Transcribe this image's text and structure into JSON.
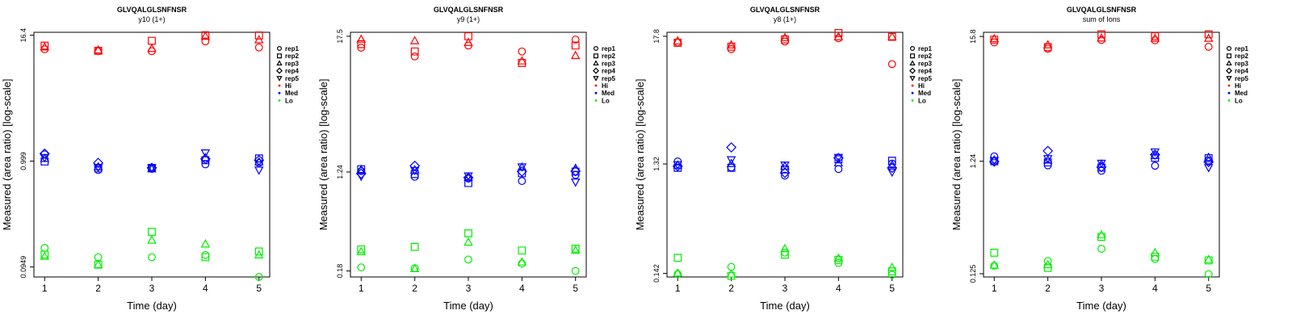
{
  "chart_data": [
    {
      "type": "scatter",
      "title": "GLVQALGLSNFNSR",
      "subtitle": "y10 (1+)",
      "xlabel": "Time (day)",
      "ylabel": "Measured (area ratio) [log-scale]",
      "y_scale": "log",
      "xlim": [
        0.8,
        5.2
      ],
      "ylim": [
        0.076,
        17.5
      ],
      "x_ticks": [
        1,
        2,
        3,
        4,
        5
      ],
      "y_ticks": [
        {
          "value": 0.0949,
          "label": "0.0949"
        },
        {
          "value": 0.999,
          "label": "0.999"
        },
        {
          "value": 16.4,
          "label": "16.4"
        }
      ],
      "colors": {
        "Hi": "#ff0000",
        "Med": "#0000ff",
        "Lo": "#00ee00"
      },
      "series": [
        {
          "level": "Hi",
          "rep": "rep1",
          "values": [
            12.0,
            11.5,
            11.5,
            14.3,
            12.5
          ]
        },
        {
          "level": "Hi",
          "rep": "rep2",
          "values": [
            13.0,
            11.6,
            14.5,
            16.4,
            16.3
          ]
        },
        {
          "level": "Hi",
          "rep": "rep3",
          "values": [
            12.6,
            11.8,
            12.2,
            16.0,
            14.8
          ]
        },
        {
          "level": "Med",
          "rep": "rep1",
          "values": [
            1.16,
            0.82,
            0.84,
            0.93,
            0.96
          ]
        },
        {
          "level": "Med",
          "rep": "rep2",
          "values": [
            0.99,
            0.85,
            0.86,
            1.02,
            1.06
          ]
        },
        {
          "level": "Med",
          "rep": "rep3",
          "values": [
            1.06,
            0.88,
            0.84,
            1.08,
            0.98
          ]
        },
        {
          "level": "Med",
          "rep": "rep4",
          "values": [
            1.18,
            0.96,
            0.86,
            1.05,
            1.02
          ]
        },
        {
          "level": "Med",
          "rep": "rep5",
          "values": [
            1.08,
            0.87,
            0.86,
            1.2,
            0.82
          ]
        },
        {
          "level": "Lo",
          "rep": "rep1",
          "values": [
            0.145,
            0.118,
            0.118,
            0.124,
            0.076
          ]
        },
        {
          "level": "Lo",
          "rep": "rep2",
          "values": [
            0.125,
            0.1,
            0.207,
            0.118,
            0.134
          ]
        },
        {
          "level": "Lo",
          "rep": "rep3",
          "values": [
            0.12,
            0.1,
            0.172,
            0.158,
            0.124
          ]
        }
      ]
    },
    {
      "type": "scatter",
      "title": "GLVQALGLSNFNSR",
      "subtitle": "y9 (1+)",
      "xlabel": "Time (day)",
      "ylabel": "Measured (area ratio) [log-scale]",
      "y_scale": "log",
      "xlim": [
        0.8,
        5.2
      ],
      "ylim": [
        0.16,
        18.9
      ],
      "x_ticks": [
        1,
        2,
        3,
        4,
        5
      ],
      "y_ticks": [
        {
          "value": 0.18,
          "label": "0.18"
        },
        {
          "value": 1.24,
          "label": "1.24"
        },
        {
          "value": 17.5,
          "label": "17.5"
        }
      ],
      "colors": {
        "Hi": "#ff0000",
        "Med": "#0000ff",
        "Lo": "#00ee00"
      },
      "series": [
        {
          "level": "Hi",
          "rep": "rep1",
          "values": [
            14.0,
            11.8,
            14.6,
            13.0,
            16.4
          ]
        },
        {
          "level": "Hi",
          "rep": "rep2",
          "values": [
            15.0,
            13.0,
            17.5,
            10.4,
            14.6
          ]
        },
        {
          "level": "Hi",
          "rep": "rep3",
          "values": [
            16.5,
            16.0,
            15.5,
            10.8,
            12.0
          ]
        },
        {
          "level": "Med",
          "rep": "rep1",
          "values": [
            1.26,
            1.13,
            1.09,
            1.04,
            1.17
          ]
        },
        {
          "level": "Med",
          "rep": "rep2",
          "values": [
            1.31,
            1.19,
            1.0,
            1.21,
            1.25
          ]
        },
        {
          "level": "Med",
          "rep": "rep3",
          "values": [
            1.3,
            1.29,
            1.12,
            1.36,
            1.33
          ]
        },
        {
          "level": "Med",
          "rep": "rep4",
          "values": [
            1.2,
            1.4,
            1.11,
            1.25,
            1.26
          ]
        },
        {
          "level": "Med",
          "rep": "rep5",
          "values": [
            1.14,
            1.28,
            1.15,
            1.37,
            1.02
          ]
        },
        {
          "level": "Lo",
          "rep": "rep1",
          "values": [
            0.193,
            0.19,
            0.225,
            0.208,
            0.18
          ]
        },
        {
          "level": "Lo",
          "rep": "rep2",
          "values": [
            0.274,
            0.288,
            0.375,
            0.268,
            0.278
          ]
        },
        {
          "level": "Lo",
          "rep": "rep3",
          "values": [
            0.262,
            0.188,
            0.315,
            0.214,
            0.269
          ]
        }
      ]
    },
    {
      "type": "scatter",
      "title": "GLVQALGLSNFNSR",
      "subtitle": "y8 (1+)",
      "xlabel": "Time (day)",
      "ylabel": "Measured (area ratio) [log-scale]",
      "y_scale": "log",
      "xlim": [
        0.8,
        5.2
      ],
      "ylim": [
        0.132,
        19.3
      ],
      "x_ticks": [
        1,
        2,
        3,
        4,
        5
      ],
      "y_ticks": [
        {
          "value": 0.142,
          "label": "0.142"
        },
        {
          "value": 1.32,
          "label": "1.32"
        },
        {
          "value": 17.8,
          "label": "17.8"
        }
      ],
      "colors": {
        "Hi": "#ff0000",
        "Med": "#0000ff",
        "Lo": "#00ee00"
      },
      "series": [
        {
          "level": "Hi",
          "rep": "rep1",
          "values": [
            15.7,
            13.7,
            16.0,
            17.1,
            10.1
          ]
        },
        {
          "level": "Hi",
          "rep": "rep2",
          "values": [
            15.6,
            14.4,
            16.7,
            19.0,
            17.6
          ]
        },
        {
          "level": "Hi",
          "rep": "rep3",
          "values": [
            16.2,
            14.9,
            17.3,
            17.6,
            17.6
          ]
        },
        {
          "level": "Med",
          "rep": "rep1",
          "values": [
            1.39,
            1.23,
            1.04,
            1.19,
            1.33
          ]
        },
        {
          "level": "Med",
          "rep": "rep2",
          "values": [
            1.22,
            1.22,
            1.18,
            1.45,
            1.41
          ]
        },
        {
          "level": "Med",
          "rep": "rep3",
          "values": [
            1.29,
            1.33,
            1.26,
            1.35,
            1.3
          ]
        },
        {
          "level": "Med",
          "rep": "rep4",
          "values": [
            1.26,
            1.85,
            1.1,
            1.49,
            1.22
          ]
        },
        {
          "level": "Med",
          "rep": "rep5",
          "values": [
            1.3,
            1.44,
            1.29,
            1.51,
            1.12
          ]
        },
        {
          "level": "Lo",
          "rep": "rep1",
          "values": [
            0.14,
            0.162,
            0.217,
            0.176,
            0.138
          ]
        },
        {
          "level": "Lo",
          "rep": "rep2",
          "values": [
            0.195,
            0.135,
            0.208,
            0.187,
            0.148
          ]
        },
        {
          "level": "Lo",
          "rep": "rep3",
          "values": [
            0.143,
            0.14,
            0.235,
            0.193,
            0.16
          ]
        }
      ]
    },
    {
      "type": "scatter",
      "title": "GLVQALGLSNFNSR",
      "subtitle": "sum of Ions",
      "xlabel": "Time (day)",
      "ylabel": "Measured (area ratio) [log-scale]",
      "y_scale": "log",
      "xlim": [
        0.8,
        5.2
      ],
      "ylim": [
        0.117,
        17.2
      ],
      "x_ticks": [
        1,
        2,
        3,
        4,
        5
      ],
      "y_ticks": [
        {
          "value": 0.125,
          "label": "0.125"
        },
        {
          "value": 1.24,
          "label": "1.24"
        },
        {
          "value": 15.8,
          "label": "15.8"
        }
      ],
      "colors": {
        "Hi": "#ff0000",
        "Med": "#0000ff",
        "Lo": "#00ee00"
      },
      "series": [
        {
          "level": "Hi",
          "rep": "rep1",
          "values": [
            14.0,
            12.3,
            14.7,
            14.6,
            12.8
          ]
        },
        {
          "level": "Hi",
          "rep": "rep2",
          "values": [
            14.8,
            12.7,
            16.5,
            15.9,
            16.5
          ]
        },
        {
          "level": "Hi",
          "rep": "rep3",
          "values": [
            15.1,
            13.3,
            15.3,
            15.2,
            15.2
          ]
        },
        {
          "level": "Med",
          "rep": "rep1",
          "values": [
            1.37,
            1.14,
            1.02,
            1.13,
            1.26
          ]
        },
        {
          "level": "Med",
          "rep": "rep2",
          "values": [
            1.24,
            1.21,
            1.09,
            1.33,
            1.32
          ]
        },
        {
          "level": "Med",
          "rep": "rep3",
          "values": [
            1.27,
            1.27,
            1.17,
            1.39,
            1.34
          ]
        },
        {
          "level": "Med",
          "rep": "rep4",
          "values": [
            1.23,
            1.53,
            1.1,
            1.42,
            1.22
          ]
        },
        {
          "level": "Med",
          "rep": "rep5",
          "values": [
            1.26,
            1.31,
            1.19,
            1.5,
            1.09
          ]
        },
        {
          "level": "Lo",
          "rep": "rep1",
          "values": [
            0.147,
            0.162,
            0.208,
            0.169,
            0.124
          ]
        },
        {
          "level": "Lo",
          "rep": "rep2",
          "values": [
            0.192,
            0.141,
            0.265,
            0.177,
            0.164
          ]
        },
        {
          "level": "Lo",
          "rep": "rep3",
          "values": [
            0.149,
            0.15,
            0.276,
            0.192,
            0.167
          ]
        }
      ]
    }
  ],
  "legend": {
    "reps": [
      {
        "label": "rep1",
        "symbol": "circle"
      },
      {
        "label": "rep2",
        "symbol": "square"
      },
      {
        "label": "rep3",
        "symbol": "triangle-up"
      },
      {
        "label": "rep4",
        "symbol": "diamond"
      },
      {
        "label": "rep5",
        "symbol": "triangle-down"
      }
    ],
    "levels": [
      {
        "label": "Hi",
        "color": "#ff0000"
      },
      {
        "label": "Med",
        "color": "#0000ff"
      },
      {
        "label": "Lo",
        "color": "#00ee00"
      }
    ]
  }
}
